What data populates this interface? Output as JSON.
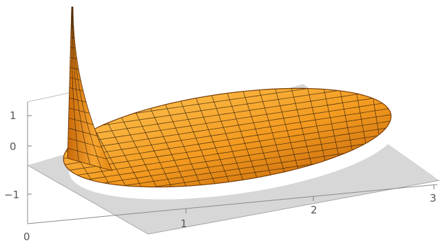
{
  "chart_data": {
    "type": "surface3d",
    "title": "",
    "xlabel": "",
    "ylabel": "",
    "zlabel": "",
    "x_ticks": [
      "0",
      "1",
      "2",
      "3"
    ],
    "z_ticks": [
      "1",
      "0",
      "−1"
    ],
    "x_range": [
      0,
      3
    ],
    "z_range": [
      -1.5,
      1.5
    ],
    "domain": "disk",
    "grid_lines": true,
    "colors": {
      "surface_light": "#ffca5a",
      "surface_mid": "#f39a1f",
      "surface_dark": "#b85a06",
      "mesh": "#2b1a08",
      "floor": "#d7d7d7",
      "floor_edge": "#9a9a9a",
      "disk_shadow": "#ffffff",
      "axis": "#777777"
    }
  }
}
